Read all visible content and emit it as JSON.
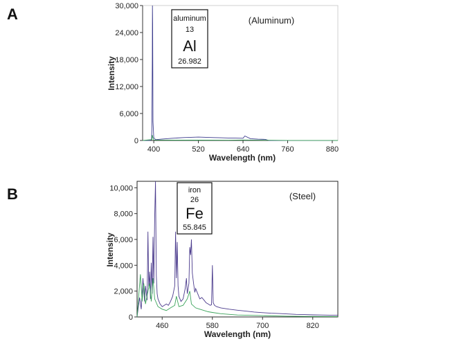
{
  "chart_data": [
    {
      "type": "line",
      "panel_label": "A",
      "annotation": "(Aluminum)",
      "xlabel": "Wavelength (nm)",
      "ylabel": "Intensity",
      "xlim": [
        370,
        895
      ],
      "ylim": [
        0,
        30000
      ],
      "xticks": [
        "400",
        "520",
        "640",
        "760",
        "880"
      ],
      "yticks": [
        "0",
        "6,000",
        "12,000",
        "18,000",
        "24,000",
        "30,000"
      ],
      "element_box": {
        "name": "aluminum",
        "number": "13",
        "symbol": "Al",
        "mass": "26.982"
      },
      "grid": false,
      "series": [
        {
          "color": "#3a3a8c",
          "x": [
            370,
            380,
            390,
            394,
            395,
            396,
            396.5,
            397,
            398,
            400,
            405,
            420,
            450,
            480,
            500,
            520,
            540,
            560,
            580,
            600,
            620,
            640,
            645,
            660,
            680,
            700,
            710,
            760,
            820,
            880,
            895
          ],
          "y": [
            0,
            0,
            20,
            150,
            2800,
            18000,
            30000,
            26000,
            4200,
            600,
            180,
            300,
            500,
            650,
            700,
            750,
            700,
            650,
            600,
            550,
            520,
            500,
            1000,
            400,
            300,
            250,
            0,
            0,
            0,
            0,
            0
          ]
        },
        {
          "color": "#3aa35a",
          "x": [
            370,
            395,
            396,
            397,
            400,
            450,
            520,
            600,
            640,
            700,
            760,
            820,
            880,
            895
          ],
          "y": [
            0,
            200,
            1200,
            800,
            100,
            80,
            80,
            60,
            100,
            60,
            20,
            10,
            20,
            0
          ]
        }
      ]
    },
    {
      "type": "line",
      "panel_label": "B",
      "annotation": "(Steel)",
      "xlabel": "Wavelength (nm)",
      "ylabel": "Intensity",
      "xlim": [
        400,
        880
      ],
      "ylim": [
        0,
        10500
      ],
      "xticks": [
        "460",
        "580",
        "700",
        "820"
      ],
      "yticks": [
        "0",
        "2,000",
        "4,000",
        "6,000",
        "8,000",
        "10,000"
      ],
      "element_box": {
        "name": "iron",
        "number": "26",
        "symbol": "Fe",
        "mass": "55.845"
      },
      "grid": false,
      "series": [
        {
          "color": "#4a3a8c",
          "x": [
            400,
            406,
            410,
            414,
            418,
            420,
            424,
            426,
            428,
            430,
            432,
            434,
            436,
            438,
            440,
            442,
            444,
            446,
            448,
            450,
            455,
            460,
            465,
            470,
            475,
            480,
            485,
            490,
            492,
            494,
            496,
            498,
            500,
            505,
            510,
            515,
            518,
            520,
            524,
            526,
            528,
            530,
            532,
            535,
            538,
            540,
            545,
            550,
            555,
            560,
            565,
            570,
            575,
            578,
            580,
            582,
            585,
            590,
            600,
            620,
            640,
            660,
            680,
            700,
            720,
            740,
            760,
            780,
            800,
            820,
            840,
            860,
            880
          ],
          "y": [
            0,
            1500,
            600,
            3000,
            1200,
            2400,
            1300,
            6600,
            2200,
            3500,
            1400,
            4200,
            1800,
            6200,
            2600,
            7600,
            10500,
            3200,
            1800,
            1400,
            1000,
            800,
            900,
            1000,
            900,
            1200,
            1600,
            2400,
            6600,
            3000,
            5800,
            2400,
            1600,
            1200,
            1400,
            2200,
            3000,
            1800,
            2600,
            5400,
            4800,
            6000,
            3400,
            2600,
            1900,
            2200,
            1800,
            1400,
            1500,
            1300,
            1100,
            1000,
            900,
            950,
            4000,
            1100,
            900,
            800,
            700,
            600,
            520,
            450,
            380,
            330,
            290,
            260,
            230,
            200,
            180,
            160,
            150,
            140,
            130
          ]
        },
        {
          "color": "#3aa35a",
          "x": [
            400,
            408,
            412,
            416,
            420,
            425,
            430,
            434,
            438,
            442,
            446,
            450,
            460,
            470,
            480,
            490,
            494,
            500,
            510,
            520,
            526,
            530,
            540,
            550,
            560,
            570,
            580,
            600,
            640,
            700,
            760,
            820,
            880
          ],
          "y": [
            0,
            3300,
            1200,
            2600,
            1000,
            1800,
            2600,
            1200,
            3000,
            1400,
            1100,
            800,
            600,
            500,
            700,
            900,
            1600,
            800,
            900,
            1400,
            2000,
            1000,
            700,
            600,
            500,
            400,
            350,
            250,
            150,
            100,
            60,
            40,
            30
          ]
        }
      ]
    }
  ]
}
